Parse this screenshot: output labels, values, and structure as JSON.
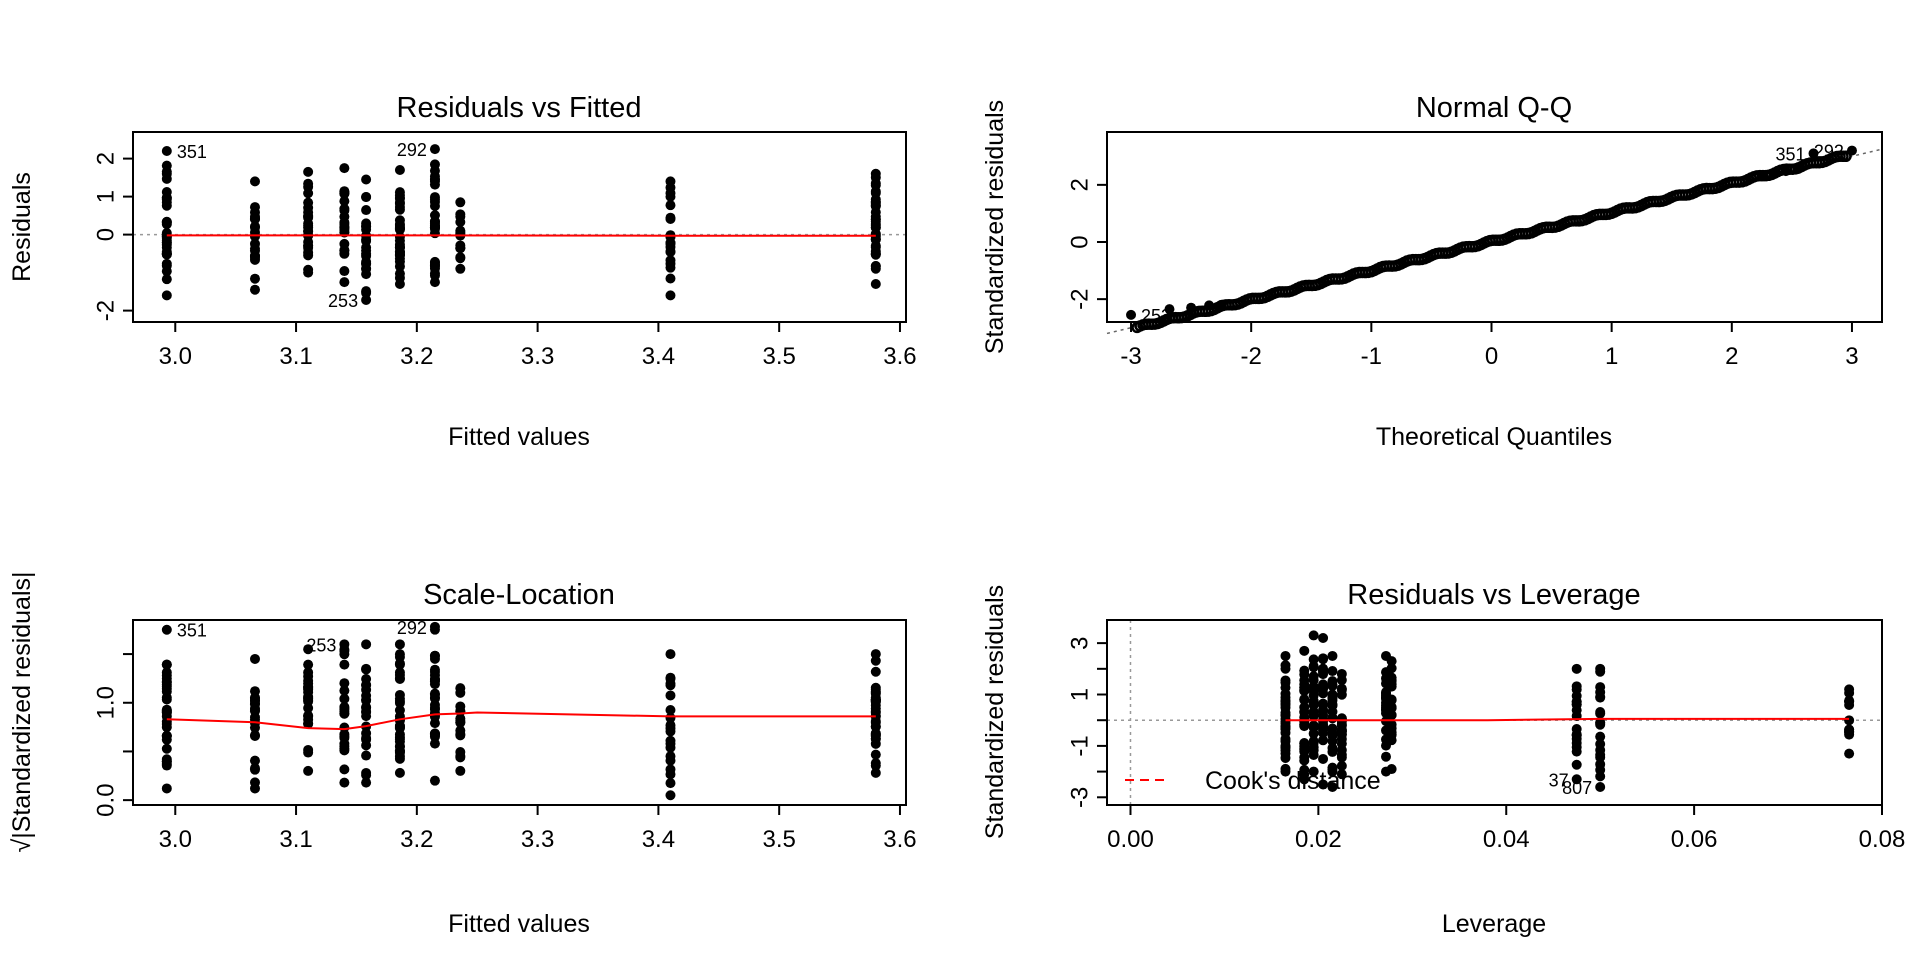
{
  "colors": {
    "points": "#000000",
    "smoother": "#ff0000",
    "reference": "#999999",
    "frame": "#000000",
    "background": "#ffffff"
  },
  "chart_data": [
    {
      "id": "rvf",
      "type": "scatter",
      "title": "Residuals vs Fitted",
      "xlabel": "Fitted values",
      "ylabel": "Residuals",
      "xlim": [
        2.965,
        3.605
      ],
      "ylim": [
        -2.3,
        2.7
      ],
      "xticks": [
        3.0,
        3.1,
        3.2,
        3.3,
        3.4,
        3.5,
        3.6
      ],
      "xtick_labels": [
        "3.0",
        "3.1",
        "3.2",
        "3.3",
        "3.4",
        "3.5",
        "3.6"
      ],
      "yticks": [
        -2,
        0,
        1,
        2
      ],
      "ytick_labels": [
        "-2",
        "0",
        "1",
        "2"
      ],
      "clusters": [
        {
          "x": 2.993,
          "min": -1.6,
          "max": 2.2,
          "n": 34
        },
        {
          "x": 3.066,
          "min": -1.45,
          "max": 1.4,
          "n": 22
        },
        {
          "x": 3.11,
          "min": -1.0,
          "max": 1.65,
          "n": 25
        },
        {
          "x": 3.14,
          "min": -1.25,
          "max": 1.75,
          "n": 24
        },
        {
          "x": 3.158,
          "min": -1.72,
          "max": 1.45,
          "n": 24
        },
        {
          "x": 3.186,
          "min": -1.3,
          "max": 1.7,
          "n": 34
        },
        {
          "x": 3.215,
          "min": -1.25,
          "max": 2.25,
          "n": 32
        },
        {
          "x": 3.236,
          "min": -0.9,
          "max": 0.85,
          "n": 16
        },
        {
          "x": 3.41,
          "min": -1.6,
          "max": 1.4,
          "n": 20
        },
        {
          "x": 3.58,
          "min": -1.3,
          "max": 1.6,
          "n": 38
        }
      ],
      "smoother": [
        [
          2.993,
          -0.02
        ],
        [
          3.2,
          -0.02
        ],
        [
          3.41,
          -0.03
        ],
        [
          3.58,
          -0.03
        ]
      ],
      "hline": 0,
      "labels": [
        {
          "text": "351",
          "x": 2.993,
          "y": 2.2,
          "side": "right"
        },
        {
          "text": "292",
          "x": 3.215,
          "y": 2.25,
          "side": "left"
        },
        {
          "text": "253",
          "x": 3.158,
          "y": -1.72,
          "side": "left"
        }
      ]
    },
    {
      "id": "qq",
      "type": "scatter",
      "title": "Normal Q-Q",
      "xlabel": "Theoretical Quantiles",
      "ylabel": "Standardized residuals",
      "xlim": [
        -3.2,
        3.25
      ],
      "ylim": [
        -2.8,
        3.85
      ],
      "xticks": [
        -3,
        -2,
        -1,
        0,
        1,
        2,
        3
      ],
      "xtick_labels": [
        "-3",
        "-2",
        "-1",
        "0",
        "1",
        "2",
        "3"
      ],
      "yticks": [
        -2,
        0,
        2
      ],
      "ytick_labels": [
        "-2",
        "0",
        "2"
      ],
      "points_range": {
        "xmin": -2.95,
        "xmax": 2.95,
        "n": 240,
        "slope": 1.02,
        "intercept": 0.02
      },
      "points": [
        [
          -3.0,
          -2.55
        ],
        [
          -2.68,
          -2.35
        ],
        [
          -2.5,
          -2.3
        ],
        [
          -2.35,
          -2.22
        ],
        [
          -2.25,
          -2.2
        ],
        [
          2.25,
          2.3
        ],
        [
          2.35,
          2.38
        ],
        [
          2.45,
          2.48
        ],
        [
          2.55,
          2.55
        ],
        [
          2.68,
          3.1
        ],
        [
          3.0,
          3.2
        ]
      ],
      "refline": {
        "slope": 1.0,
        "intercept": 0.0
      },
      "labels": [
        {
          "text": "351",
          "x": 2.68,
          "y": 3.1,
          "side": "left"
        },
        {
          "text": "292",
          "x": 3.0,
          "y": 3.2,
          "side": "left"
        },
        {
          "text": "253",
          "x": -3.0,
          "y": -2.55,
          "side": "right"
        }
      ]
    },
    {
      "id": "sl",
      "type": "scatter",
      "title": "Scale-Location",
      "xlabel": "Fitted values",
      "ylabel": "√|Standardized residuals|",
      "xlim": [
        2.965,
        3.605
      ],
      "ylim": [
        -0.05,
        1.85
      ],
      "xticks": [
        3.0,
        3.1,
        3.2,
        3.3,
        3.4,
        3.5,
        3.6
      ],
      "xtick_labels": [
        "3.0",
        "3.1",
        "3.2",
        "3.3",
        "3.4",
        "3.5",
        "3.6"
      ],
      "yticks": [
        0.0,
        1.0
      ],
      "ytick_labels": [
        "0.0",
        "1.0"
      ],
      "minor_yticks": [
        0.5,
        1.5
      ],
      "clusters": [
        {
          "x": 2.993,
          "min": 0.12,
          "max": 1.75,
          "n": 34
        },
        {
          "x": 3.066,
          "min": 0.12,
          "max": 1.45,
          "n": 22
        },
        {
          "x": 3.11,
          "min": 0.3,
          "max": 1.55,
          "n": 25
        },
        {
          "x": 3.14,
          "min": 0.18,
          "max": 1.6,
          "n": 24
        },
        {
          "x": 3.158,
          "min": 0.18,
          "max": 1.6,
          "n": 24
        },
        {
          "x": 3.186,
          "min": 0.28,
          "max": 1.6,
          "n": 34
        },
        {
          "x": 3.215,
          "min": 0.2,
          "max": 1.78,
          "n": 32
        },
        {
          "x": 3.236,
          "min": 0.3,
          "max": 1.15,
          "n": 16
        },
        {
          "x": 3.41,
          "min": 0.05,
          "max": 1.5,
          "n": 20
        },
        {
          "x": 3.58,
          "min": 0.28,
          "max": 1.5,
          "n": 38
        }
      ],
      "smoother": [
        [
          2.993,
          0.83
        ],
        [
          3.066,
          0.8
        ],
        [
          3.11,
          0.74
        ],
        [
          3.14,
          0.73
        ],
        [
          3.158,
          0.76
        ],
        [
          3.186,
          0.83
        ],
        [
          3.215,
          0.88
        ],
        [
          3.236,
          0.89
        ],
        [
          3.25,
          0.9
        ],
        [
          3.41,
          0.86
        ],
        [
          3.58,
          0.86
        ]
      ],
      "labels": [
        {
          "text": "351",
          "x": 2.993,
          "y": 1.75,
          "side": "right"
        },
        {
          "text": "253",
          "x": 3.14,
          "y": 1.6,
          "side": "left"
        },
        {
          "text": "292",
          "x": 3.215,
          "y": 1.78,
          "side": "left"
        }
      ]
    },
    {
      "id": "rvl",
      "type": "scatter",
      "title": "Residuals vs Leverage",
      "xlabel": "Leverage",
      "ylabel": "Standardized residuals",
      "xlim": [
        -0.0025,
        0.08
      ],
      "ylim": [
        -3.3,
        3.9
      ],
      "xticks": [
        0.0,
        0.02,
        0.04,
        0.06,
        0.08
      ],
      "xtick_labels": [
        "0.00",
        "0.02",
        "0.04",
        "0.06",
        "0.08"
      ],
      "yticks": [
        -3,
        -1,
        1,
        3
      ],
      "ytick_labels": [
        "-3",
        "-1",
        "1",
        "3"
      ],
      "minor_yticks": [
        -2,
        0,
        2
      ],
      "clusters": [
        {
          "x": 0.0165,
          "min": -2.0,
          "max": 2.5,
          "n": 34
        },
        {
          "x": 0.0185,
          "min": -2.3,
          "max": 2.7,
          "n": 32
        },
        {
          "x": 0.0195,
          "min": -2.0,
          "max": 3.3,
          "n": 30
        },
        {
          "x": 0.0205,
          "min": -2.5,
          "max": 3.2,
          "n": 30
        },
        {
          "x": 0.0215,
          "min": -2.6,
          "max": 2.5,
          "n": 26
        },
        {
          "x": 0.0225,
          "min": -2.1,
          "max": 1.8,
          "n": 24
        },
        {
          "x": 0.0272,
          "min": -2.0,
          "max": 2.5,
          "n": 22
        },
        {
          "x": 0.0278,
          "min": -1.9,
          "max": 2.3,
          "n": 20
        },
        {
          "x": 0.0475,
          "min": -2.3,
          "max": 2.0,
          "n": 20
        },
        {
          "x": 0.05,
          "min": -2.6,
          "max": 2.0,
          "n": 20
        },
        {
          "x": 0.0765,
          "min": -1.3,
          "max": 1.2,
          "n": 14
        }
      ],
      "smoother": [
        [
          0.0165,
          0.0
        ],
        [
          0.028,
          0.0
        ],
        [
          0.038,
          0.0
        ],
        [
          0.05,
          0.05
        ],
        [
          0.0765,
          0.05
        ]
      ],
      "hline": 0,
      "vline": 0,
      "labels": [
        {
          "text": "37",
          "x": 0.0475,
          "y": -2.3,
          "side": "left"
        },
        {
          "text": "807",
          "x": 0.05,
          "y": -2.6,
          "side": "left"
        }
      ],
      "legend": {
        "label": "Cook's distance",
        "placement": "bottom-left"
      }
    }
  ]
}
